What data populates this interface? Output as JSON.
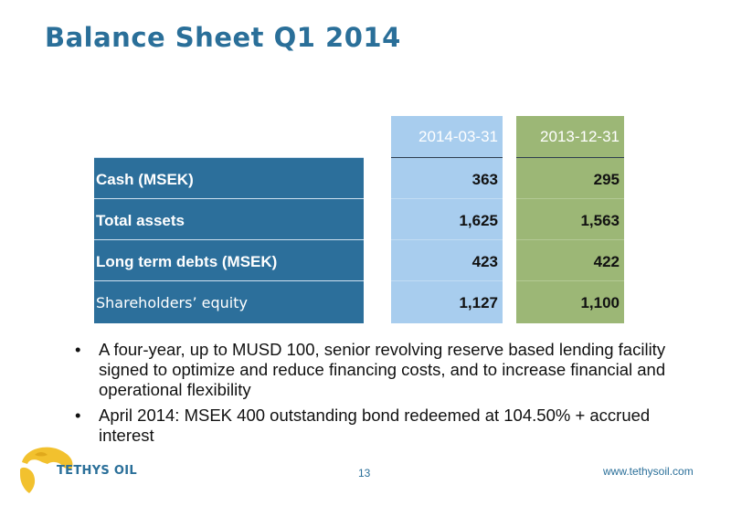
{
  "slide": {
    "title": "Balance Sheet Q1 2014",
    "page_number": "13",
    "website": "www.tethysoil.com"
  },
  "logo": {
    "text": "TETHYS OIL"
  },
  "table": {
    "columns": [
      "2014-03-31",
      "2013-12-31"
    ],
    "rows": [
      {
        "label": "Cash (MSEK)",
        "values": [
          "363",
          "295"
        ]
      },
      {
        "label": "Total assets",
        "values": [
          "1,625",
          "1,563"
        ]
      },
      {
        "label": "Long term debts (MSEK)",
        "values": [
          "423",
          "422"
        ]
      },
      {
        "label": "Shareholders’ equity",
        "values": [
          "1,127",
          "1,100"
        ]
      }
    ]
  },
  "bullets": [
    "A four-year, up to MUSD 100, senior revolving reserve based lending facility signed to optimize and reduce financing costs, and to increase financial and operational flexibility",
    "April 2014: MSEK 400 outstanding bond redeemed at 104.50% + accrued interest"
  ],
  "colors": {
    "title": "#2a6f99",
    "label_column": "#2c6f9b",
    "column_2014": "#a8cdee",
    "column_2013": "#9cb776",
    "logo_globe": "#f2c12e"
  }
}
